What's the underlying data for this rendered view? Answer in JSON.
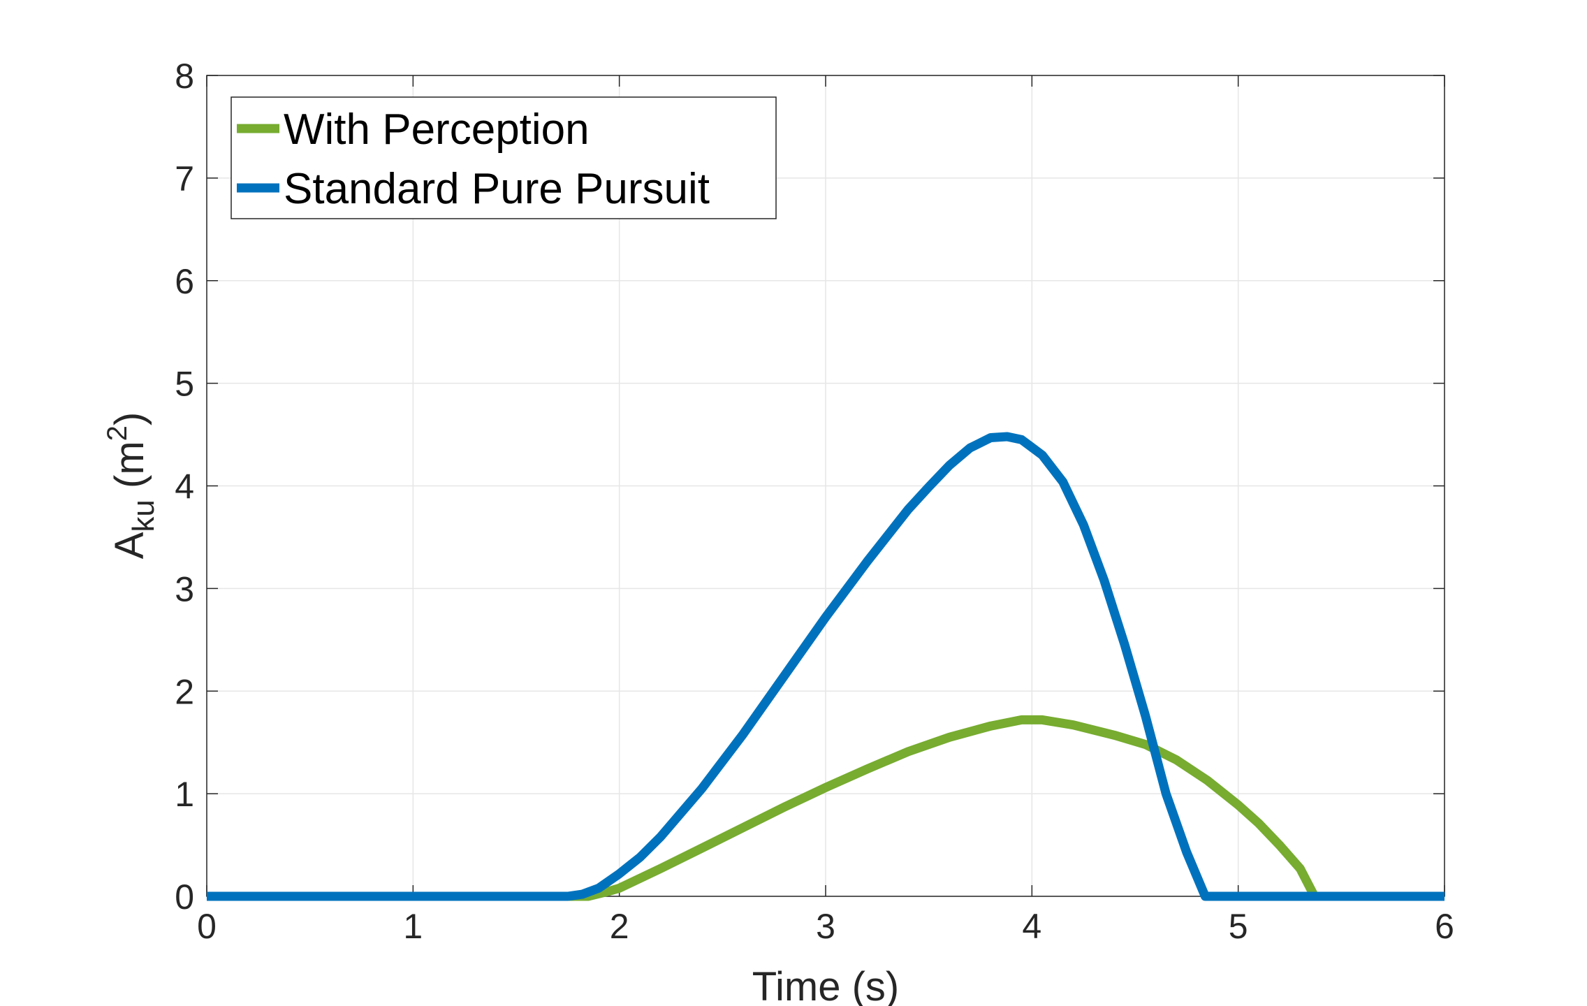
{
  "chart_data": {
    "type": "line",
    "xlabel": "Time (s)",
    "ylabel": {
      "main": "A",
      "subscript": "ku",
      "unit_open": " (m",
      "unit_sup": "2",
      "unit_close": ")"
    },
    "xlim": [
      0,
      6
    ],
    "ylim": [
      0,
      8
    ],
    "xticks": [
      "0",
      "1",
      "2",
      "3",
      "4",
      "5",
      "6"
    ],
    "yticks": [
      "0",
      "1",
      "2",
      "3",
      "4",
      "5",
      "6",
      "7",
      "8"
    ],
    "grid": true,
    "legend_position": "top-left",
    "series": [
      {
        "name": "With Perception",
        "color": "#77ac30",
        "x": [
          0,
          1.75,
          1.85,
          1.95,
          2.0,
          2.2,
          2.4,
          2.6,
          2.8,
          3.0,
          3.2,
          3.4,
          3.6,
          3.8,
          3.95,
          4.05,
          4.2,
          4.4,
          4.55,
          4.7,
          4.85,
          5.0,
          5.1,
          5.2,
          5.3,
          5.37,
          5.5,
          6.0
        ],
        "y": [
          0,
          0,
          0,
          0.05,
          0.08,
          0.27,
          0.47,
          0.67,
          0.87,
          1.06,
          1.24,
          1.41,
          1.55,
          1.66,
          1.72,
          1.72,
          1.67,
          1.57,
          1.48,
          1.33,
          1.13,
          0.89,
          0.71,
          0.5,
          0.27,
          0.0,
          0,
          0
        ]
      },
      {
        "name": "Standard Pure Pursuit",
        "color": "#0072bd",
        "x": [
          0,
          1.75,
          1.82,
          1.9,
          2.0,
          2.1,
          2.2,
          2.4,
          2.6,
          2.8,
          3.0,
          3.2,
          3.4,
          3.5,
          3.6,
          3.7,
          3.8,
          3.88,
          3.95,
          4.05,
          4.15,
          4.25,
          4.35,
          4.45,
          4.55,
          4.65,
          4.75,
          4.84,
          4.86,
          5.0,
          6.0
        ],
        "y": [
          0,
          0,
          0.02,
          0.08,
          0.22,
          0.38,
          0.58,
          1.05,
          1.58,
          2.15,
          2.72,
          3.26,
          3.77,
          3.99,
          4.2,
          4.37,
          4.47,
          4.48,
          4.45,
          4.3,
          4.04,
          3.62,
          3.08,
          2.45,
          1.76,
          1.0,
          0.43,
          0.0,
          0,
          0,
          0
        ]
      }
    ]
  }
}
